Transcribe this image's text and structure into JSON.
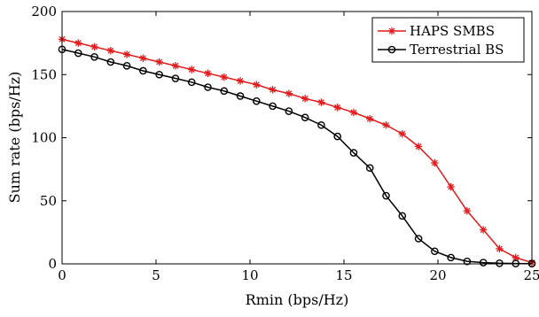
{
  "chart_data": {
    "type": "line",
    "title": "",
    "xlabel": "Rmin (bps/Hz)",
    "ylabel": "Sum rate (bps/Hz)",
    "xlim": [
      0,
      25
    ],
    "ylim": [
      0,
      200
    ],
    "xticks": [
      "0",
      "5",
      "10",
      "15",
      "20",
      "25"
    ],
    "yticks": [
      "0",
      "50",
      "100",
      "150",
      "200"
    ],
    "grid": false,
    "legend_position": "top-right",
    "x": [
      0,
      0.862,
      1.724,
      2.586,
      3.448,
      4.31,
      5.172,
      6.034,
      6.897,
      7.759,
      8.621,
      9.483,
      10.345,
      11.207,
      12.069,
      12.931,
      13.793,
      14.655,
      15.517,
      16.379,
      17.241,
      18.103,
      18.966,
      19.828,
      20.69,
      21.552,
      22.414,
      23.276,
      24.138,
      25
    ],
    "series": [
      {
        "name": "HAPS SMBS",
        "color": "#e31a1c",
        "marker": "asterisk",
        "values": [
          178,
          175,
          172,
          169,
          166,
          163,
          160,
          157,
          154,
          151,
          148,
          145,
          142,
          138,
          135,
          131,
          128,
          124,
          120,
          115,
          110,
          103,
          93,
          80,
          61,
          42,
          27,
          12,
          5,
          1
        ]
      },
      {
        "name": "Terrestrial BS",
        "color": "#000000",
        "marker": "circle",
        "values": [
          170,
          167,
          164,
          160,
          157,
          153,
          150,
          147,
          144,
          140,
          137,
          133,
          129,
          125,
          121,
          116,
          110,
          101,
          88,
          76,
          54,
          38,
          20,
          10,
          5,
          2,
          1,
          0.5,
          0.3,
          0.2
        ]
      }
    ]
  }
}
